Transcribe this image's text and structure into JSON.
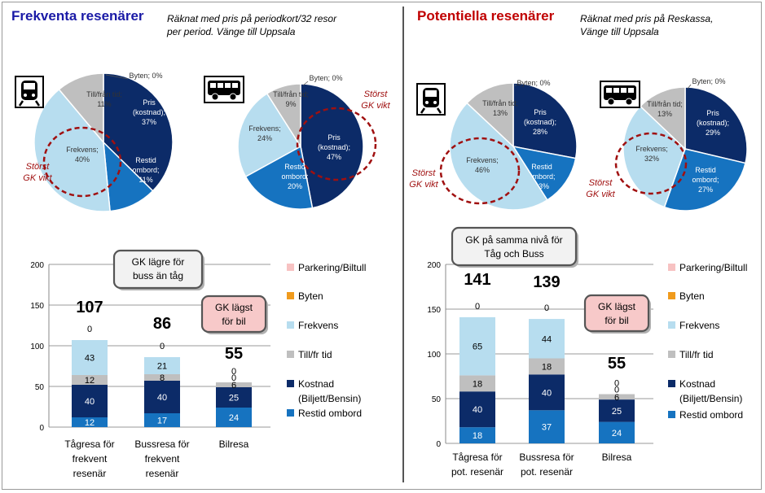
{
  "colors": {
    "pris": "#0c2b68",
    "restid": "#1673c0",
    "frekvens": "#b7ddef",
    "tillfran": "#bfbfbf",
    "byten": "#f09b1d",
    "parkering": "#f7c2c2",
    "left_title": "#1a1aa6",
    "right_title": "#c00000",
    "annotation": "#a01010"
  },
  "left": {
    "title": "Frekventa resenärer",
    "subtitle_line1": "Räknat med pris på periodkort/32 resor",
    "subtitle_line2": "per period. Vänge till Uppsala"
  },
  "right": {
    "title": "Potentiella resenärer",
    "subtitle_line1": "Räknat med pris på Reskassa,",
    "subtitle_line2": "Vänge till Uppsala"
  },
  "icons": {
    "train": "train-icon",
    "bus": "bus-icon"
  },
  "annotations": {
    "storst_line1": "Störst",
    "storst_line2": "GK vikt",
    "left_gk_lagre_line1": "GK lägre för",
    "left_gk_lagre_line2": "buss än tåg",
    "gk_lagst_line1": "GK lägst",
    "gk_lagst_line2": "för bil",
    "right_gk_samma_line1": "GK på samma nivå för",
    "right_gk_samma_line2": "Tåg och Buss"
  },
  "chart_data": [
    {
      "type": "pie",
      "id": "pie-left-train",
      "slices": [
        {
          "label_line1": "Pris",
          "label_line2": "(kostnad);",
          "label_line3": "37%",
          "value": 37,
          "color_key": "pris"
        },
        {
          "label_line1": "Restid",
          "label_line2": "ombord;",
          "label_line3": "11%",
          "value": 11,
          "color_key": "restid"
        },
        {
          "label_line1": "Frekvens;",
          "label_line2": "40%",
          "label_line3": "",
          "value": 40,
          "color_key": "frekvens"
        },
        {
          "label_line1": "Till/från tid;",
          "label_line2": "11%",
          "label_line3": "",
          "value": 11,
          "color_key": "tillfran"
        },
        {
          "label_line1": "Byten; 0%",
          "label_line2": "",
          "label_line3": "",
          "value": 0,
          "color_key": "byten"
        }
      ]
    },
    {
      "type": "pie",
      "id": "pie-left-bus",
      "slices": [
        {
          "label_line1": "Pris",
          "label_line2": "(kostnad);",
          "label_line3": "47%",
          "value": 47,
          "color_key": "pris"
        },
        {
          "label_line1": "Restid",
          "label_line2": "ombord;",
          "label_line3": "20%",
          "value": 20,
          "color_key": "restid"
        },
        {
          "label_line1": "Frekvens;",
          "label_line2": "24%",
          "label_line3": "",
          "value": 24,
          "color_key": "frekvens"
        },
        {
          "label_line1": "Till/från tid;",
          "label_line2": "9%",
          "label_line3": "",
          "value": 9,
          "color_key": "tillfran"
        },
        {
          "label_line1": "Byten; 0%",
          "label_line2": "",
          "label_line3": "",
          "value": 0,
          "color_key": "byten"
        }
      ]
    },
    {
      "type": "pie",
      "id": "pie-right-train",
      "slices": [
        {
          "label_line1": "Pris",
          "label_line2": "(kostnad);",
          "label_line3": "28%",
          "value": 28,
          "color_key": "pris"
        },
        {
          "label_line1": "Restid",
          "label_line2": "ombord;",
          "label_line3": "13%",
          "value": 13,
          "color_key": "restid"
        },
        {
          "label_line1": "Frekvens;",
          "label_line2": "46%",
          "label_line3": "",
          "value": 46,
          "color_key": "frekvens"
        },
        {
          "label_line1": "Till/från tid;",
          "label_line2": "13%",
          "label_line3": "",
          "value": 13,
          "color_key": "tillfran"
        },
        {
          "label_line1": "Byten; 0%",
          "label_line2": "",
          "label_line3": "",
          "value": 0,
          "color_key": "byten"
        }
      ]
    },
    {
      "type": "pie",
      "id": "pie-right-bus",
      "slices": [
        {
          "label_line1": "Pris",
          "label_line2": "(kostnad);",
          "label_line3": "29%",
          "value": 29,
          "color_key": "pris"
        },
        {
          "label_line1": "Restid",
          "label_line2": "ombord;",
          "label_line3": "27%",
          "value": 27,
          "color_key": "restid"
        },
        {
          "label_line1": "Frekvens;",
          "label_line2": "32%",
          "label_line3": "",
          "value": 32,
          "color_key": "frekvens"
        },
        {
          "label_line1": "Till/från tid;",
          "label_line2": "13%",
          "label_line3": "",
          "value": 13,
          "color_key": "tillfran"
        },
        {
          "label_line1": "Byten; 0%",
          "label_line2": "",
          "label_line3": "",
          "value": 0,
          "color_key": "byten"
        }
      ]
    },
    {
      "type": "bar",
      "id": "bar-left",
      "stacked": true,
      "ylim": [
        0,
        200
      ],
      "yticks": [
        "0",
        "50",
        "100",
        "150",
        "200"
      ],
      "categories": [
        {
          "line1": "Tågresa för",
          "line2": "frekvent",
          "line3": "resenär"
        },
        {
          "line1": "Bussresa för",
          "line2": "frekvent",
          "line3": "resenär"
        },
        {
          "line1": "Bilresa",
          "line2": "",
          "line3": ""
        }
      ],
      "totals": [
        "107",
        "86",
        "55"
      ],
      "series": [
        {
          "name": "Restid ombord",
          "color_key": "restid",
          "values": [
            12,
            17,
            24
          ],
          "labels": [
            "12",
            "17",
            "24"
          ]
        },
        {
          "name": "Kostnad (Biljett/Bensin)",
          "color_key": "pris",
          "values": [
            40,
            40,
            25
          ],
          "labels": [
            "40",
            "40",
            "25"
          ]
        },
        {
          "name": "Till/fr tid",
          "color_key": "tillfran",
          "values": [
            12,
            8,
            6
          ],
          "labels": [
            "12",
            "8",
            "6"
          ]
        },
        {
          "name": "Frekvens",
          "color_key": "frekvens",
          "values": [
            43,
            21,
            0
          ],
          "labels": [
            "43",
            "21",
            "0"
          ]
        },
        {
          "name": "Byten",
          "color_key": "byten",
          "values": [
            0,
            0,
            0
          ],
          "labels": [
            "0",
            "0",
            "0"
          ]
        },
        {
          "name": "Parkering/Biltull",
          "color_key": "parkering",
          "values": [
            0,
            0,
            0
          ],
          "labels": [
            "",
            "",
            ""
          ]
        }
      ],
      "legend": [
        {
          "line1": "Parkering/Biltull",
          "line2": "",
          "color_key": "parkering"
        },
        {
          "line1": "Byten",
          "line2": "",
          "color_key": "byten"
        },
        {
          "line1": "Frekvens",
          "line2": "",
          "color_key": "frekvens"
        },
        {
          "line1": "Till/fr tid",
          "line2": "",
          "color_key": "tillfran"
        },
        {
          "line1": "Kostnad",
          "line2": "(Biljett/Bensin)",
          "color_key": "pris"
        },
        {
          "line1": "Restid ombord",
          "line2": "",
          "color_key": "restid"
        }
      ]
    },
    {
      "type": "bar",
      "id": "bar-right",
      "stacked": true,
      "ylim": [
        0,
        200
      ],
      "yticks": [
        "0",
        "50",
        "100",
        "150",
        "200"
      ],
      "categories": [
        {
          "line1": "Tågresa för",
          "line2": "pot. resenär",
          "line3": ""
        },
        {
          "line1": "Bussresa för",
          "line2": "pot. resenär",
          "line3": ""
        },
        {
          "line1": "Bilresa",
          "line2": "",
          "line3": ""
        }
      ],
      "totals": [
        "141",
        "139",
        "55"
      ],
      "series": [
        {
          "name": "Restid ombord",
          "color_key": "restid",
          "values": [
            18,
            37,
            24
          ],
          "labels": [
            "18",
            "37",
            "24"
          ]
        },
        {
          "name": "Kostnad (Biljett/Bensin)",
          "color_key": "pris",
          "values": [
            40,
            40,
            25
          ],
          "labels": [
            "40",
            "40",
            "25"
          ]
        },
        {
          "name": "Till/fr tid",
          "color_key": "tillfran",
          "values": [
            18,
            18,
            6
          ],
          "labels": [
            "18",
            "18",
            "6"
          ]
        },
        {
          "name": "Frekvens",
          "color_key": "frekvens",
          "values": [
            65,
            44,
            0
          ],
          "labels": [
            "65",
            "44",
            "0"
          ]
        },
        {
          "name": "Byten",
          "color_key": "byten",
          "values": [
            0,
            0,
            0
          ],
          "labels": [
            "0",
            "0",
            "0"
          ]
        },
        {
          "name": "Parkering/Biltull",
          "color_key": "parkering",
          "values": [
            0,
            0,
            0
          ],
          "labels": [
            "",
            "",
            ""
          ]
        }
      ],
      "legend": [
        {
          "line1": "Parkering/Biltull",
          "line2": "",
          "color_key": "parkering"
        },
        {
          "line1": "Byten",
          "line2": "",
          "color_key": "byten"
        },
        {
          "line1": "Frekvens",
          "line2": "",
          "color_key": "frekvens"
        },
        {
          "line1": "Till/fr tid",
          "line2": "",
          "color_key": "tillfran"
        },
        {
          "line1": "Kostnad",
          "line2": "(Biljett/Bensin)",
          "color_key": "pris"
        },
        {
          "line1": "Restid ombord",
          "line2": "",
          "color_key": "restid"
        }
      ]
    }
  ]
}
